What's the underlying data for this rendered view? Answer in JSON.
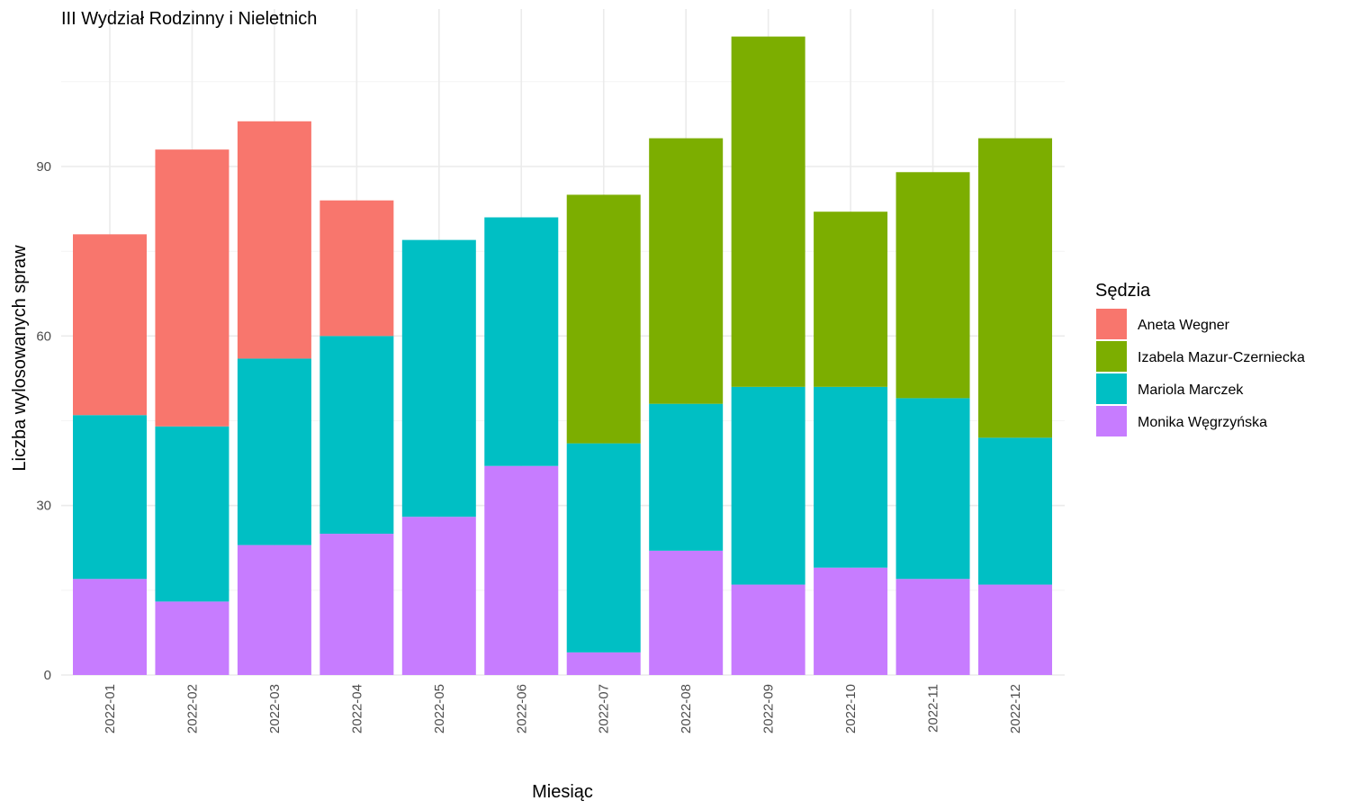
{
  "chart_data": {
    "type": "bar",
    "stacked": true,
    "title": "III Wydział Rodzinny i Nieletnich",
    "xlabel": "Miesiąc",
    "ylabel": "Liczba wylosowanych spraw",
    "ylim": [
      0,
      117
    ],
    "yticks": [
      0,
      30,
      60,
      90
    ],
    "grid": true,
    "legend_title": "Sędzia",
    "legend_position": "right",
    "categories": [
      "2022-01",
      "2022-02",
      "2022-03",
      "2022-04",
      "2022-05",
      "2022-06",
      "2022-07",
      "2022-08",
      "2022-09",
      "2022-10",
      "2022-11",
      "2022-12"
    ],
    "series": [
      {
        "name": "Monika Węgrzyńska",
        "color": "#C77CFF",
        "values": [
          17,
          13,
          23,
          25,
          28,
          37,
          4,
          22,
          16,
          19,
          17,
          16
        ]
      },
      {
        "name": "Mariola Marczek",
        "color": "#00BFC4",
        "values": [
          29,
          31,
          33,
          35,
          49,
          44,
          37,
          26,
          35,
          32,
          32,
          26
        ]
      },
      {
        "name": "Izabela Mazur-Czerniecka",
        "color": "#7CAE00",
        "values": [
          0,
          0,
          0,
          0,
          0,
          0,
          44,
          47,
          62,
          31,
          40,
          53
        ]
      },
      {
        "name": "Aneta Wegner",
        "color": "#F8766D",
        "values": [
          32,
          49,
          42,
          24,
          0,
          0,
          0,
          0,
          0,
          0,
          0,
          0
        ]
      }
    ],
    "legend_order": [
      "Aneta Wegner",
      "Izabela Mazur-Czerniecka",
      "Mariola Marczek",
      "Monika Węgrzyńska"
    ]
  }
}
